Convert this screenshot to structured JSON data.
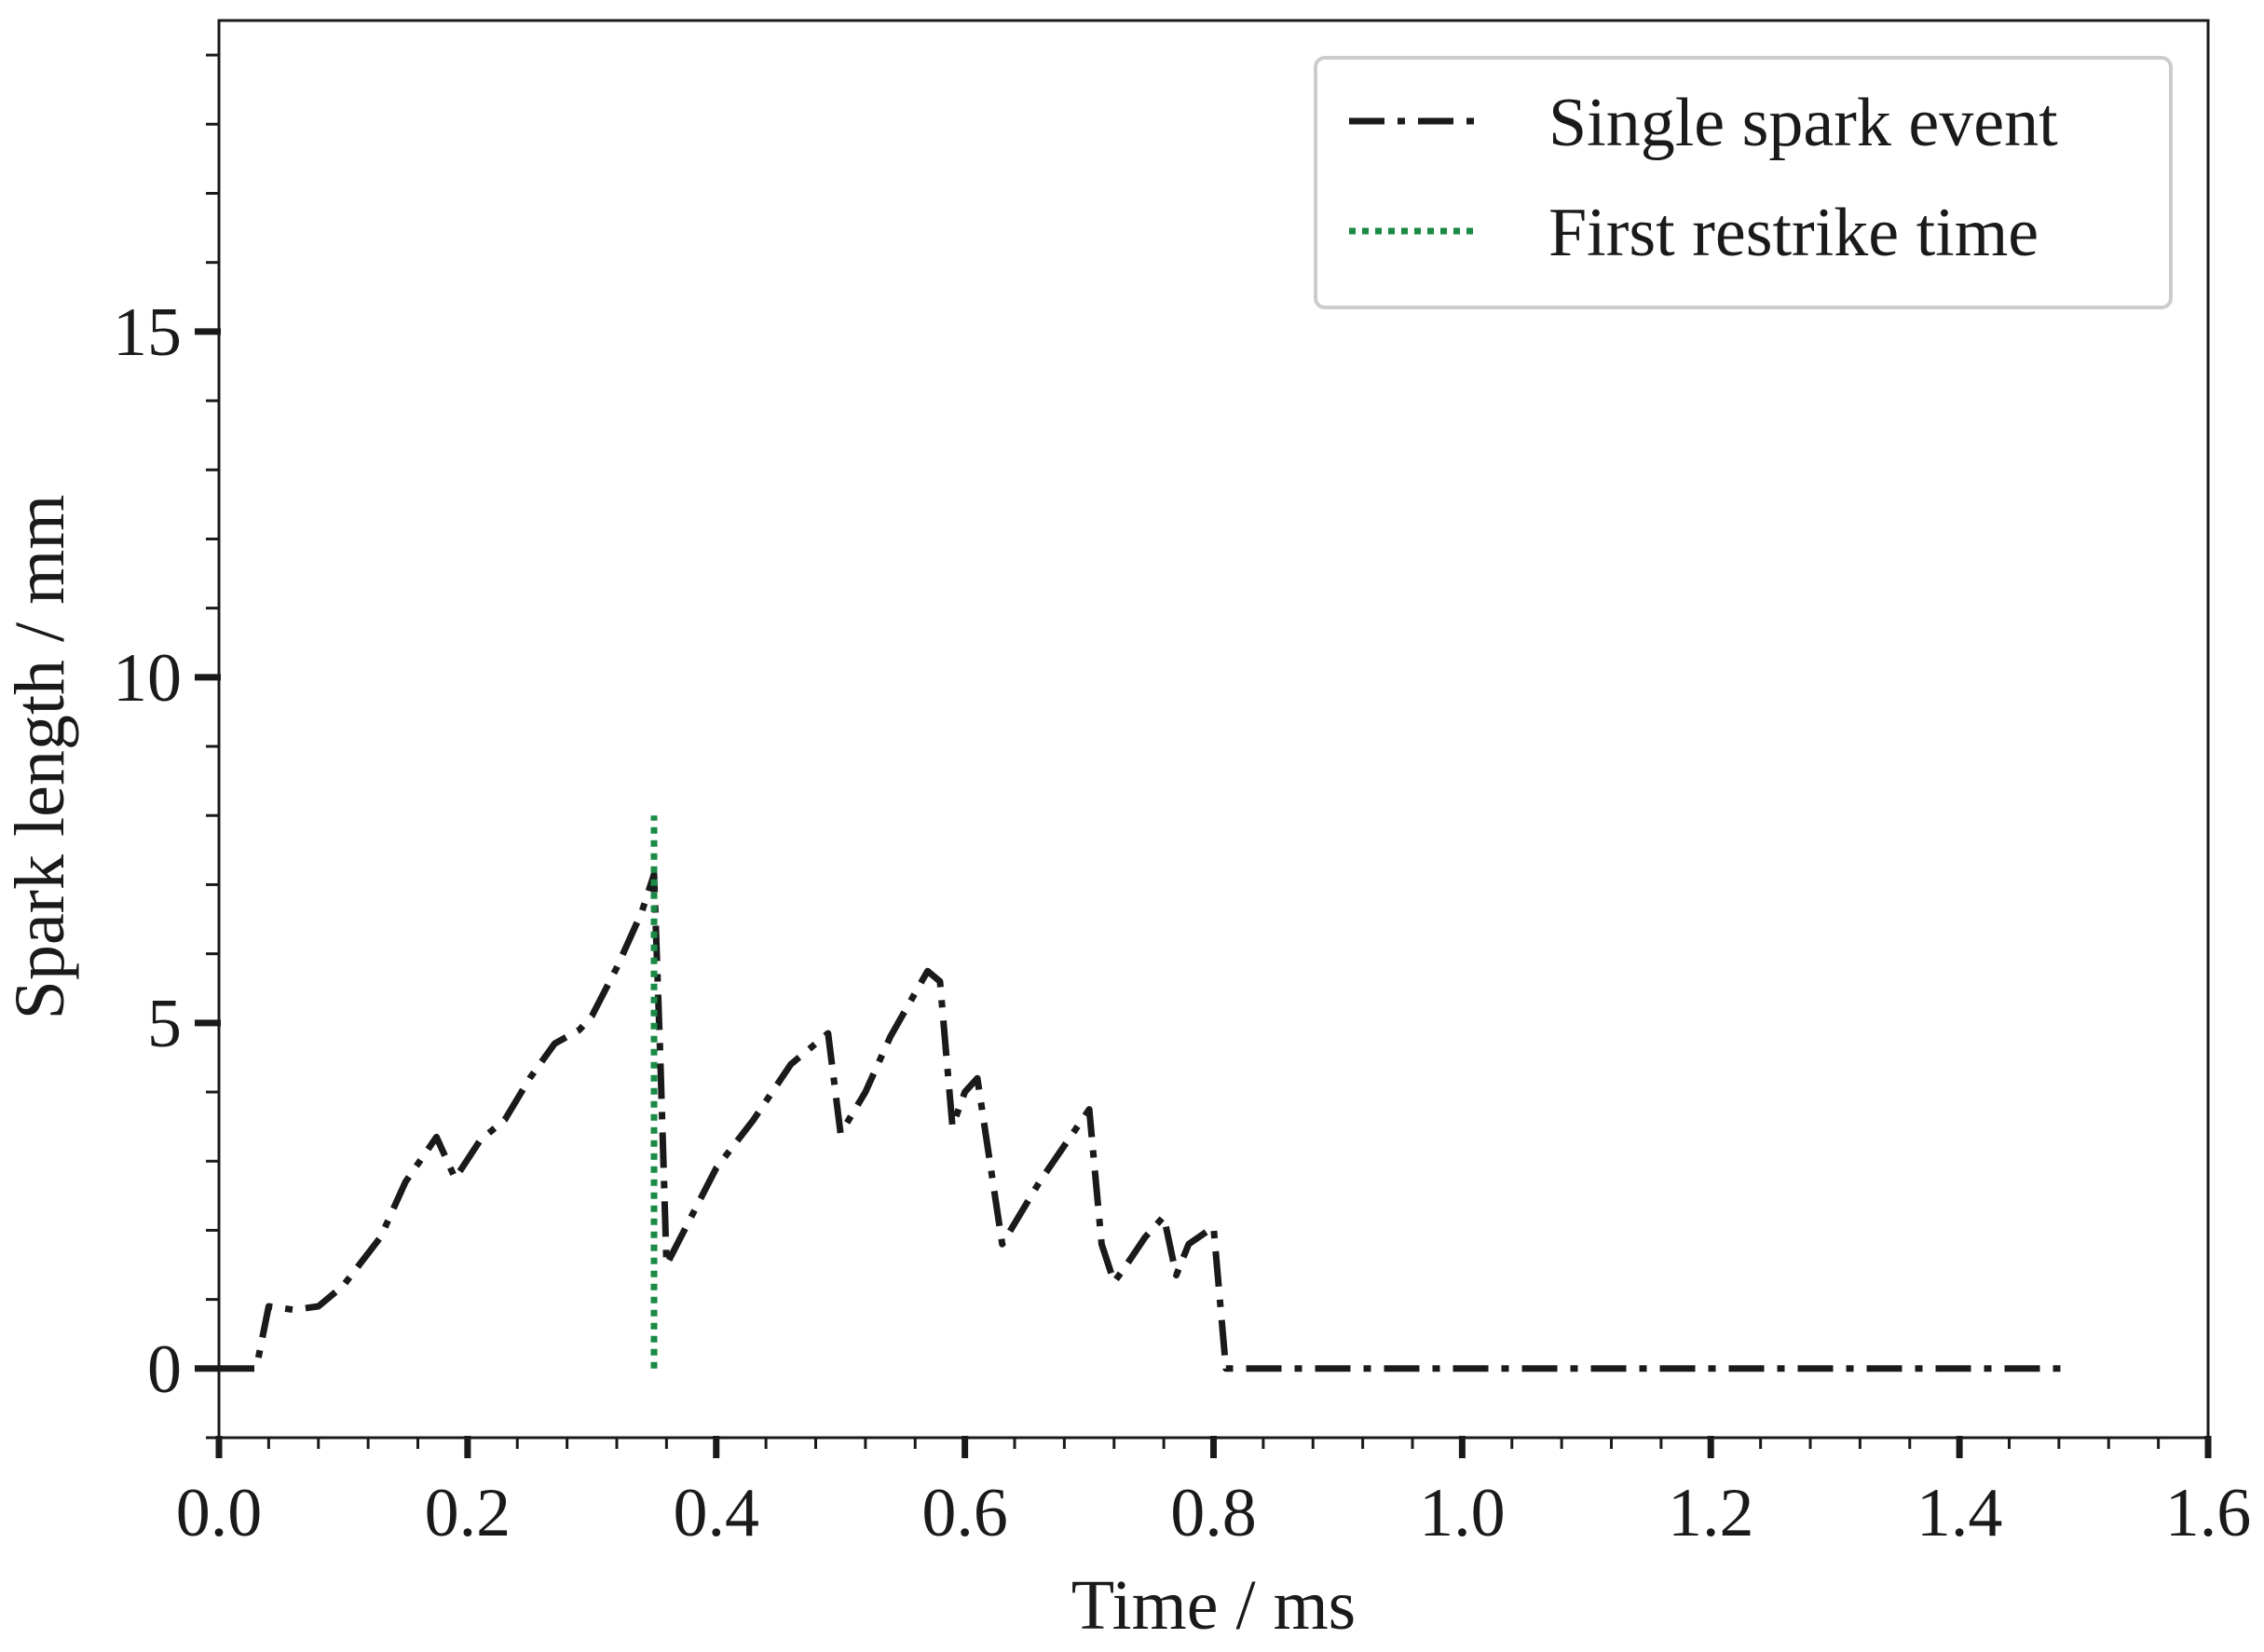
{
  "chart_data": {
    "type": "line",
    "title": "",
    "xlabel": "Time / ms",
    "ylabel": "Spark length / mm",
    "xlim": [
      0.0,
      1.6
    ],
    "ylim": [
      -1.0,
      19.5
    ],
    "x_ticks": [
      0.0,
      0.2,
      0.4,
      0.6,
      0.8,
      1.0,
      1.2,
      1.4,
      1.6
    ],
    "x_tick_labels": [
      "0.0",
      "0.2",
      "0.4",
      "0.6",
      "0.8",
      "1.0",
      "1.2",
      "1.4",
      "1.6"
    ],
    "x_minor_step": 0.04,
    "y_ticks": [
      0,
      5,
      10,
      15
    ],
    "y_tick_labels": [
      "0",
      "5",
      "10",
      "15"
    ],
    "y_minor_step": 1,
    "grid": false,
    "legend_position": "top-right",
    "series": [
      {
        "name": "Single spark event",
        "style": "dash-dot",
        "color": "#1a1a1a",
        "x": [
          0.0,
          0.03,
          0.04,
          0.06,
          0.08,
          0.1,
          0.13,
          0.15,
          0.175,
          0.19,
          0.21,
          0.23,
          0.25,
          0.27,
          0.29,
          0.3,
          0.32,
          0.34,
          0.35,
          0.355,
          0.36,
          0.38,
          0.4,
          0.43,
          0.46,
          0.49,
          0.5,
          0.52,
          0.54,
          0.57,
          0.58,
          0.59,
          0.6,
          0.61,
          0.63,
          0.66,
          0.7,
          0.71,
          0.72,
          0.73,
          0.745,
          0.76,
          0.77,
          0.78,
          0.8,
          0.81,
          0.82,
          0.9,
          1.0,
          1.1,
          1.2,
          1.3,
          1.4,
          1.49
        ],
        "values": [
          0.0,
          0.0,
          0.9,
          0.85,
          0.9,
          1.2,
          1.9,
          2.7,
          3.35,
          2.75,
          3.3,
          3.6,
          4.2,
          4.7,
          4.9,
          5.1,
          5.8,
          6.6,
          7.15,
          4.5,
          1.5,
          2.2,
          2.9,
          3.6,
          4.4,
          4.85,
          3.4,
          4.0,
          4.8,
          5.75,
          5.6,
          3.5,
          4.0,
          4.2,
          1.8,
          2.7,
          3.75,
          1.8,
          1.25,
          1.5,
          1.9,
          2.2,
          1.35,
          1.8,
          2.05,
          0.0,
          0.0,
          0.0,
          0.0,
          0.0,
          0.0,
          0.0,
          0.0,
          0.0
        ]
      },
      {
        "name": "First restrike time",
        "style": "dotted",
        "color": "#1a8a45",
        "x": [
          0.35,
          0.35
        ],
        "values": [
          0.0,
          8.0
        ]
      }
    ]
  }
}
